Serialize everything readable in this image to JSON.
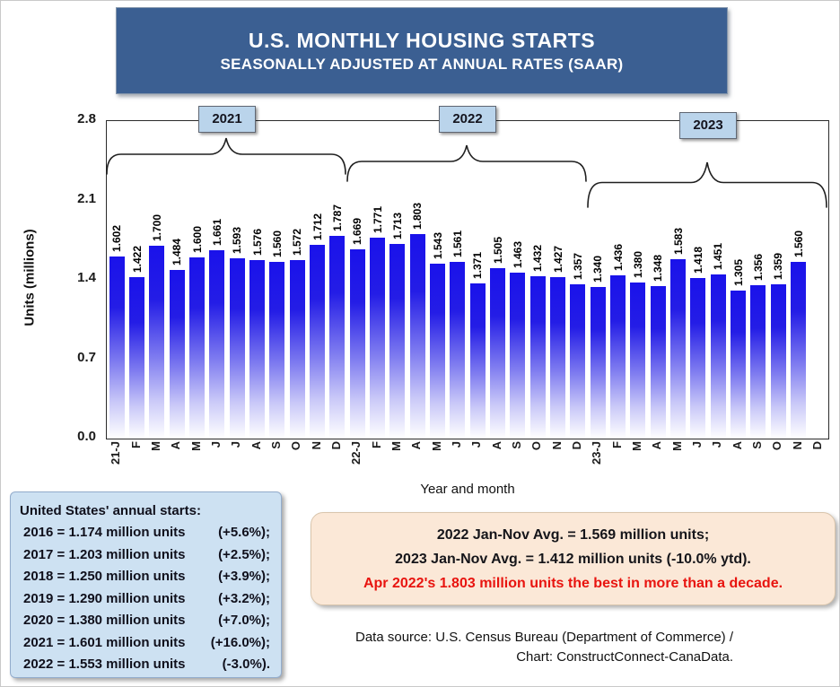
{
  "banner": {
    "title": "U.S. MONTHLY HOUSING STARTS",
    "subtitle": "SEASONALLY ADJUSTED AT ANNUAL RATES (SAAR)"
  },
  "chart_data": {
    "type": "bar",
    "title": "U.S. Monthly Housing Starts (SAAR)",
    "xlabel": "Year and month",
    "ylabel": "Units (millions)",
    "ylim": [
      0,
      2.8
    ],
    "yticks": [
      0.0,
      0.7,
      1.4,
      2.1,
      2.8
    ],
    "grid": false,
    "categories": [
      "21-J",
      "F",
      "M",
      "A",
      "M",
      "J",
      "J",
      "A",
      "S",
      "O",
      "N",
      "D",
      "22-J",
      "F",
      "M",
      "A",
      "M",
      "J",
      "J",
      "A",
      "S",
      "O",
      "N",
      "D",
      "23-J",
      "F",
      "M",
      "A",
      "M",
      "J",
      "J",
      "A",
      "S",
      "O",
      "N",
      "D"
    ],
    "values": [
      1.602,
      1.422,
      1.7,
      1.484,
      1.6,
      1.661,
      1.593,
      1.576,
      1.56,
      1.572,
      1.712,
      1.787,
      1.669,
      1.771,
      1.713,
      1.803,
      1.543,
      1.561,
      1.371,
      1.505,
      1.463,
      1.432,
      1.427,
      1.357,
      1.34,
      1.436,
      1.38,
      1.348,
      1.583,
      1.418,
      1.451,
      1.305,
      1.356,
      1.359,
      1.56,
      null
    ],
    "year_groups": [
      {
        "label": "2021",
        "start": 0,
        "end": 11
      },
      {
        "label": "2022",
        "start": 12,
        "end": 23
      },
      {
        "label": "2023",
        "start": 24,
        "end": 35
      }
    ],
    "bar_color_top": "#1a12ea",
    "bar_color_bottom": "#ffffff"
  },
  "annual_box": {
    "heading": "United States' annual starts:",
    "rows": [
      {
        "text": "2016 = 1.174 million units",
        "pct": "(+5.6%);"
      },
      {
        "text": "2017 = 1.203 million units",
        "pct": "(+2.5%);"
      },
      {
        "text": "2018 = 1.250 million units",
        "pct": "(+3.9%);"
      },
      {
        "text": "2019 = 1.290 million units",
        "pct": "(+3.2%);"
      },
      {
        "text": "2020 = 1.380 million units",
        "pct": "(+7.0%);"
      },
      {
        "text": "2021 = 1.601 million units",
        "pct": "(+16.0%);"
      },
      {
        "text": "2022 = 1.553 million units",
        "pct": "(-3.0%)."
      }
    ]
  },
  "note_box": {
    "line1": "2022 Jan-Nov Avg. = 1.569 million units;",
    "line2": "2023 Jan-Nov Avg. = 1.412 million units (-10.0% ytd).",
    "line3": "Apr 2022's 1.803 million units the best in more than a decade.",
    "highlight_color": "#e8140f"
  },
  "source": {
    "line1": "Data source: U.S. Census Bureau (Department of Commerce) /",
    "line2": "Chart: ConstructConnect-CanaData."
  }
}
